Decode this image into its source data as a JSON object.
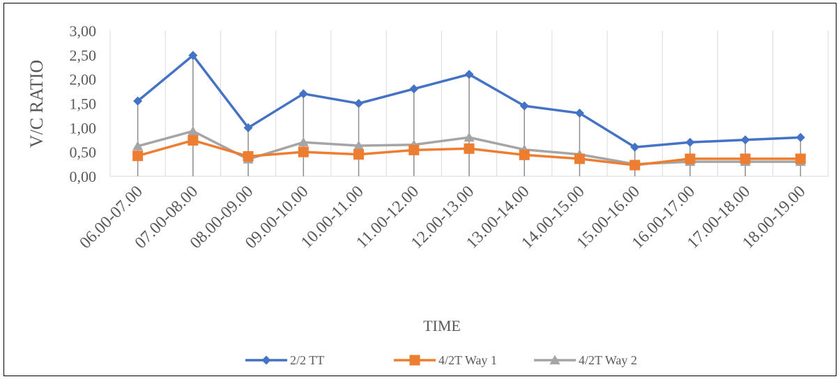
{
  "chart_data": {
    "type": "line",
    "title": "",
    "xlabel": "TIME",
    "ylabel": "V/C RATIO",
    "ylim": [
      0,
      3
    ],
    "yticks": [
      "0,00",
      "0,50",
      "1,00",
      "1,50",
      "2,00",
      "2,50",
      "3,00"
    ],
    "categories": [
      "06.00-07.00",
      "07.00-08.00",
      "08.00-09.00",
      "09.00-10.00",
      "10.00-11.00",
      "11.00-12.00",
      "12.00-13.00",
      "13.00-14.00",
      "14.00-15.00",
      "15.00-16.00",
      "16.00-17.00",
      "17.00-18.00",
      "18.00-19.00"
    ],
    "grid": "vertical",
    "legend_position": "bottom",
    "series": [
      {
        "name": "2/2 TT",
        "color": "#4472C4",
        "marker": "diamond",
        "values": [
          1.55,
          2.49,
          1.0,
          1.7,
          1.5,
          1.8,
          2.1,
          1.45,
          1.3,
          0.6,
          0.7,
          0.75,
          0.8
        ]
      },
      {
        "name": "4/2T Way 1",
        "color": "#ED7D31",
        "marker": "square",
        "values": [
          0.42,
          0.74,
          0.41,
          0.5,
          0.45,
          0.54,
          0.57,
          0.44,
          0.36,
          0.23,
          0.36,
          0.36,
          0.36
        ]
      },
      {
        "name": "4/2T Way 2",
        "color": "#A5A5A5",
        "marker": "triangle",
        "values": [
          0.62,
          0.93,
          0.35,
          0.7,
          0.63,
          0.65,
          0.8,
          0.55,
          0.45,
          0.25,
          0.3,
          0.3,
          0.3
        ]
      }
    ]
  }
}
